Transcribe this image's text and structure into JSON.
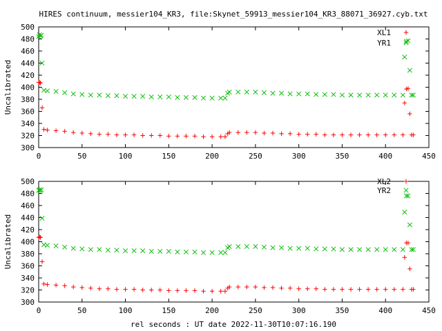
{
  "figure": {
    "title": "HIRES continuum, messier104_KR3, file:Skynet_59913_messier104_KR3_88071_36927.cyb.txt",
    "xlabel": "rel seconds : UT date 2022-11-30T10:07:16.190"
  },
  "chart_data": [
    {
      "type": "scatter",
      "ylabel": "Uncalibrated",
      "xlim": [
        0,
        450
      ],
      "ylim": [
        300,
        500
      ],
      "xticks": [
        0,
        50,
        100,
        150,
        200,
        250,
        300,
        350,
        400,
        450
      ],
      "yticks": [
        300,
        320,
        340,
        360,
        380,
        400,
        420,
        440,
        460,
        480,
        500
      ],
      "legend": "top-right",
      "series": [
        {
          "name": "XL1",
          "color": "#ff0000",
          "marker": "plus",
          "points": [
            [
              0,
              408
            ],
            [
              1,
              408
            ],
            [
              2,
              407
            ],
            [
              4,
              366
            ],
            [
              6,
              330
            ],
            [
              10,
              329
            ],
            [
              20,
              328
            ],
            [
              30,
              327
            ],
            [
              40,
              325
            ],
            [
              50,
              324
            ],
            [
              60,
              323
            ],
            [
              70,
              322
            ],
            [
              80,
              322
            ],
            [
              90,
              321
            ],
            [
              100,
              321
            ],
            [
              110,
              321
            ],
            [
              120,
              320
            ],
            [
              130,
              320
            ],
            [
              140,
              320
            ],
            [
              150,
              319
            ],
            [
              160,
              319
            ],
            [
              170,
              319
            ],
            [
              180,
              319
            ],
            [
              190,
              318
            ],
            [
              200,
              318
            ],
            [
              210,
              318
            ],
            [
              215,
              318
            ],
            [
              218,
              323
            ],
            [
              220,
              325
            ],
            [
              230,
              325
            ],
            [
              240,
              325
            ],
            [
              250,
              325
            ],
            [
              260,
              324
            ],
            [
              270,
              324
            ],
            [
              280,
              323
            ],
            [
              290,
              323
            ],
            [
              300,
              322
            ],
            [
              310,
              322
            ],
            [
              320,
              322
            ],
            [
              330,
              321
            ],
            [
              340,
              321
            ],
            [
              350,
              321
            ],
            [
              360,
              321
            ],
            [
              370,
              321
            ],
            [
              380,
              321
            ],
            [
              390,
              321
            ],
            [
              400,
              321
            ],
            [
              410,
              321
            ],
            [
              420,
              321
            ],
            [
              422,
              374
            ],
            [
              424,
              397
            ],
            [
              426,
              398
            ],
            [
              428,
              356
            ],
            [
              430,
              321
            ],
            [
              432,
              321
            ]
          ]
        },
        {
          "name": "YR1",
          "color": "#00bb00",
          "marker": "x",
          "points": [
            [
              0,
              484
            ],
            [
              1,
              487
            ],
            [
              2,
              485
            ],
            [
              3,
              486
            ],
            [
              4,
              440
            ],
            [
              6,
              395
            ],
            [
              10,
              394
            ],
            [
              20,
              393
            ],
            [
              30,
              391
            ],
            [
              40,
              389
            ],
            [
              50,
              388
            ],
            [
              60,
              387
            ],
            [
              70,
              387
            ],
            [
              80,
              386
            ],
            [
              90,
              386
            ],
            [
              100,
              385
            ],
            [
              110,
              385
            ],
            [
              120,
              385
            ],
            [
              130,
              384
            ],
            [
              140,
              384
            ],
            [
              150,
              384
            ],
            [
              160,
              383
            ],
            [
              170,
              383
            ],
            [
              180,
              383
            ],
            [
              190,
              382
            ],
            [
              200,
              382
            ],
            [
              210,
              382
            ],
            [
              215,
              382
            ],
            [
              218,
              390
            ],
            [
              220,
              392
            ],
            [
              230,
              392
            ],
            [
              240,
              392
            ],
            [
              250,
              392
            ],
            [
              260,
              391
            ],
            [
              270,
              390
            ],
            [
              280,
              390
            ],
            [
              290,
              389
            ],
            [
              300,
              389
            ],
            [
              310,
              389
            ],
            [
              320,
              388
            ],
            [
              330,
              388
            ],
            [
              340,
              388
            ],
            [
              350,
              387
            ],
            [
              360,
              387
            ],
            [
              370,
              387
            ],
            [
              380,
              387
            ],
            [
              390,
              387
            ],
            [
              400,
              387
            ],
            [
              410,
              387
            ],
            [
              420,
              387
            ],
            [
              422,
              450
            ],
            [
              424,
              476
            ],
            [
              426,
              477
            ],
            [
              428,
              428
            ],
            [
              430,
              387
            ],
            [
              432,
              387
            ]
          ]
        }
      ]
    },
    {
      "type": "scatter",
      "ylabel": "Uncalibrated",
      "xlim": [
        0,
        450
      ],
      "ylim": [
        300,
        500
      ],
      "xticks": [
        0,
        50,
        100,
        150,
        200,
        250,
        300,
        350,
        400,
        450
      ],
      "yticks": [
        300,
        320,
        340,
        360,
        380,
        400,
        420,
        440,
        460,
        480,
        500
      ],
      "legend": "top-right",
      "series": [
        {
          "name": "XL2",
          "color": "#ff0000",
          "marker": "plus",
          "points": [
            [
              0,
              407
            ],
            [
              1,
              408
            ],
            [
              2,
              407
            ],
            [
              4,
              367
            ],
            [
              6,
              330
            ],
            [
              10,
              329
            ],
            [
              20,
              328
            ],
            [
              30,
              327
            ],
            [
              40,
              325
            ],
            [
              50,
              324
            ],
            [
              60,
              323
            ],
            [
              70,
              322
            ],
            [
              80,
              322
            ],
            [
              90,
              321
            ],
            [
              100,
              321
            ],
            [
              110,
              321
            ],
            [
              120,
              320
            ],
            [
              130,
              320
            ],
            [
              140,
              320
            ],
            [
              150,
              319
            ],
            [
              160,
              319
            ],
            [
              170,
              319
            ],
            [
              180,
              319
            ],
            [
              190,
              318
            ],
            [
              200,
              318
            ],
            [
              210,
              318
            ],
            [
              215,
              318
            ],
            [
              218,
              323
            ],
            [
              220,
              325
            ],
            [
              230,
              325
            ],
            [
              240,
              325
            ],
            [
              250,
              325
            ],
            [
              260,
              324
            ],
            [
              270,
              324
            ],
            [
              280,
              323
            ],
            [
              290,
              323
            ],
            [
              300,
              322
            ],
            [
              310,
              322
            ],
            [
              320,
              322
            ],
            [
              330,
              321
            ],
            [
              340,
              321
            ],
            [
              350,
              321
            ],
            [
              360,
              321
            ],
            [
              370,
              321
            ],
            [
              380,
              321
            ],
            [
              390,
              321
            ],
            [
              400,
              321
            ],
            [
              410,
              321
            ],
            [
              420,
              321
            ],
            [
              422,
              374
            ],
            [
              424,
              398
            ],
            [
              426,
              398
            ],
            [
              428,
              355
            ],
            [
              430,
              321
            ],
            [
              432,
              321
            ]
          ]
        },
        {
          "name": "YR2",
          "color": "#00bb00",
          "marker": "x",
          "points": [
            [
              0,
              485
            ],
            [
              1,
              486
            ],
            [
              2,
              485
            ],
            [
              3,
              486
            ],
            [
              4,
              439
            ],
            [
              6,
              395
            ],
            [
              10,
              394
            ],
            [
              20,
              393
            ],
            [
              30,
              391
            ],
            [
              40,
              389
            ],
            [
              50,
              388
            ],
            [
              60,
              387
            ],
            [
              70,
              387
            ],
            [
              80,
              386
            ],
            [
              90,
              386
            ],
            [
              100,
              385
            ],
            [
              110,
              385
            ],
            [
              120,
              385
            ],
            [
              130,
              384
            ],
            [
              140,
              384
            ],
            [
              150,
              384
            ],
            [
              160,
              383
            ],
            [
              170,
              383
            ],
            [
              180,
              383
            ],
            [
              190,
              382
            ],
            [
              200,
              382
            ],
            [
              210,
              382
            ],
            [
              215,
              382
            ],
            [
              218,
              390
            ],
            [
              220,
              392
            ],
            [
              230,
              392
            ],
            [
              240,
              392
            ],
            [
              250,
              392
            ],
            [
              260,
              391
            ],
            [
              270,
              390
            ],
            [
              280,
              390
            ],
            [
              290,
              389
            ],
            [
              300,
              389
            ],
            [
              310,
              389
            ],
            [
              320,
              388
            ],
            [
              330,
              388
            ],
            [
              340,
              388
            ],
            [
              350,
              387
            ],
            [
              360,
              387
            ],
            [
              370,
              387
            ],
            [
              380,
              387
            ],
            [
              390,
              387
            ],
            [
              400,
              387
            ],
            [
              410,
              387
            ],
            [
              420,
              387
            ],
            [
              422,
              449
            ],
            [
              424,
              476
            ],
            [
              426,
              476
            ],
            [
              428,
              428
            ],
            [
              430,
              387
            ],
            [
              432,
              387
            ]
          ]
        }
      ]
    }
  ]
}
